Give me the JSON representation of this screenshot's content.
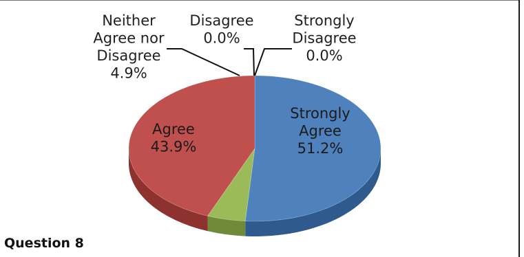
{
  "chart_data": {
    "type": "pie",
    "title": "Question 8",
    "slices": [
      {
        "label_lines": [
          "Strongly",
          "Agree"
        ],
        "value": 51.2,
        "value_text": "51.2%",
        "color": "#4f81bd",
        "side_color": "#2f5a8e"
      },
      {
        "label_lines": [
          "Strongly",
          "Disagree"
        ],
        "value": 0.0,
        "value_text": "0.0%",
        "color": "#8064a2",
        "side_color": "#5a4676"
      },
      {
        "label_lines": [
          "Disagree"
        ],
        "value": 0.0,
        "value_text": "0.0%",
        "color": "#4bacc6",
        "side_color": "#2f7a8e"
      },
      {
        "label_lines": [
          "Neither",
          "Agree nor",
          "Disagree"
        ],
        "value": 4.9,
        "value_text": "4.9%",
        "color": "#9bbb59",
        "side_color": "#6f8a38"
      },
      {
        "label_lines": [
          "Agree"
        ],
        "value": 43.9,
        "value_text": "43.9%",
        "color": "#c0504d",
        "side_color": "#8e3230"
      }
    ],
    "legend": "none",
    "style": "3d"
  }
}
